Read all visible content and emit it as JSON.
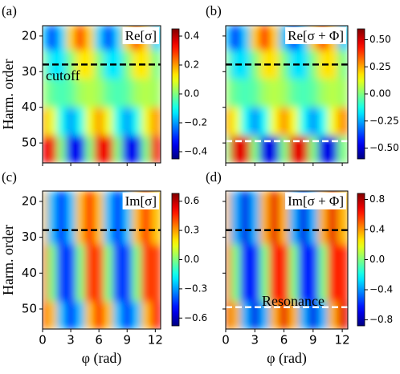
{
  "chart_data": [
    {
      "type": "heatmap",
      "panel": "(a)",
      "title": "Re[σ]",
      "colormap": "jet",
      "x": [
        0,
        1,
        2,
        3,
        4,
        5,
        6,
        7,
        8,
        9,
        10,
        11,
        12
      ],
      "y": [
        20,
        28,
        36,
        44,
        52
      ],
      "z": [
        [
          -0.15,
          -0.3,
          -0.15,
          0.15,
          0.3,
          0.15,
          -0.15,
          -0.3,
          -0.15,
          0.15,
          0.3,
          0.15,
          -0.15
        ],
        [
          0,
          -0.13,
          -0.13,
          0,
          0.13,
          0.13,
          0,
          -0.13,
          -0.13,
          0,
          0.13,
          0.13,
          0
        ],
        [
          0.03,
          -0.03,
          -0.05,
          -0.03,
          0.03,
          0.05,
          0.03,
          -0.03,
          -0.05,
          -0.03,
          0.03,
          0.05,
          0.03
        ],
        [
          0.2,
          0.1,
          -0.1,
          -0.2,
          -0.1,
          0.1,
          0.2,
          0.1,
          -0.1,
          -0.2,
          -0.1,
          0.1,
          0.2
        ],
        [
          0.35,
          0.35,
          0,
          -0.35,
          -0.35,
          0,
          0.35,
          0.35,
          0,
          -0.35,
          -0.35,
          0,
          0.35
        ]
      ],
      "xlim": [
        0,
        12.57
      ],
      "ylim": [
        55.6,
        17.1
      ],
      "xticks": [
        0,
        3,
        6,
        9,
        12
      ],
      "yticks": [
        20,
        30,
        40,
        50
      ],
      "show_xticklabels": false,
      "show_yticklabels": true,
      "ylabel": "Harm. order",
      "clim": [
        -0.45,
        0.45
      ],
      "cticks": [
        {
          "value": -0.4,
          "label": "−0.4"
        },
        {
          "value": -0.2,
          "label": "−0.2"
        },
        {
          "value": 0,
          "label": "0.0"
        },
        0.2,
        0.4
      ],
      "hlines": [
        {
          "y": 28,
          "color": "#000000"
        }
      ],
      "annotations": [
        {
          "text": "cutoff",
          "color": "#000000"
        }
      ]
    },
    {
      "type": "heatmap",
      "panel": "(b)",
      "title": "Re[σ + Φ]",
      "colormap": "jet",
      "x": [
        0,
        1,
        2,
        3,
        4,
        5,
        6,
        7,
        8,
        9,
        10,
        11,
        12
      ],
      "y": [
        20,
        28,
        36,
        44,
        52
      ],
      "z": [
        [
          -0.21,
          -0.42,
          -0.21,
          0.21,
          0.42,
          0.21,
          -0.21,
          -0.42,
          -0.21,
          0.21,
          0.42,
          0.21,
          -0.21
        ],
        [
          0,
          -0.18,
          -0.18,
          0,
          0.18,
          0.18,
          0,
          -0.18,
          -0.18,
          0,
          0.18,
          0.18,
          0
        ],
        [
          0.04,
          -0.04,
          -0.07,
          -0.04,
          0.04,
          0.07,
          0.04,
          -0.04,
          -0.07,
          -0.04,
          0.04,
          0.07,
          0.04
        ],
        [
          0.28,
          0.14,
          -0.14,
          -0.28,
          -0.14,
          0.14,
          0.28,
          0.14,
          -0.14,
          -0.28,
          -0.14,
          0.14,
          0.28
        ],
        [
          0,
          0.48,
          0.48,
          0,
          -0.48,
          -0.48,
          0,
          0.48,
          0.48,
          0,
          -0.48,
          -0.48,
          0
        ]
      ],
      "xlim": [
        0,
        12.57
      ],
      "ylim": [
        55.6,
        17.1
      ],
      "xticks": [
        0,
        3,
        6,
        9,
        12
      ],
      "yticks": [
        20,
        30,
        40,
        50
      ],
      "show_xticklabels": false,
      "show_yticklabels": false,
      "clim": [
        -0.6,
        0.6
      ],
      "cticks": [
        {
          "value": -0.5,
          "label": "−0.50"
        },
        {
          "value": -0.25,
          "label": "−0.25"
        },
        {
          "value": 0,
          "label": "0.00"
        },
        {
          "value": 0.25,
          "label": "0.25"
        },
        {
          "value": 0.5,
          "label": "0.50"
        }
      ],
      "hlines": [
        {
          "y": 28,
          "color": "#000000"
        },
        {
          "y": 49.5,
          "color": "#ffffff"
        }
      ],
      "annotations": []
    },
    {
      "type": "heatmap",
      "panel": "(c)",
      "title": "Im[σ]",
      "colormap": "jet",
      "x": [
        0,
        1,
        2,
        3,
        4,
        5,
        6,
        7,
        8,
        9,
        10,
        11,
        12
      ],
      "y": [
        20,
        28,
        36,
        44,
        52
      ],
      "z": [
        [
          0.25,
          -0.25,
          -0.5,
          -0.25,
          0.25,
          0.5,
          0.25,
          -0.25,
          -0.5,
          -0.25,
          0.25,
          0.5,
          0.25
        ],
        [
          0.25,
          -0.25,
          -0.5,
          -0.25,
          0.25,
          0.5,
          0.25,
          -0.25,
          -0.5,
          -0.25,
          0.25,
          0.5,
          0.25
        ],
        [
          0.43,
          0,
          -0.43,
          -0.43,
          0,
          0.43,
          0.43,
          0,
          -0.43,
          -0.43,
          0,
          0.43,
          0.43
        ],
        [
          0.43,
          0,
          -0.43,
          -0.43,
          0,
          0.43,
          0.43,
          0,
          -0.43,
          -0.43,
          0,
          0.43,
          0.43
        ],
        [
          0.5,
          0.25,
          -0.25,
          -0.5,
          -0.25,
          0.25,
          0.5,
          0.25,
          -0.25,
          -0.5,
          -0.25,
          0.25,
          0.5
        ]
      ],
      "xlim": [
        0,
        12.57
      ],
      "ylim": [
        55.6,
        17.1
      ],
      "xticks": [
        0,
        3,
        6,
        9,
        12
      ],
      "yticks": [
        20,
        30,
        40,
        50
      ],
      "show_xticklabels": true,
      "show_yticklabels": true,
      "ylabel": "Harm. order",
      "xlabel": "φ (rad)",
      "clim": [
        -0.68,
        0.68
      ],
      "cticks": [
        {
          "value": -0.6,
          "label": "−0.6"
        },
        {
          "value": -0.3,
          "label": "−0.3"
        },
        {
          "value": 0,
          "label": "0.0"
        },
        0.3,
        0.6
      ],
      "hlines": [
        {
          "y": 28,
          "color": "#000000"
        }
      ],
      "annotations": []
    },
    {
      "type": "heatmap",
      "panel": "(d)",
      "title": "Im[σ + Φ]",
      "colormap": "jet",
      "x": [
        0,
        1,
        2,
        3,
        4,
        5,
        6,
        7,
        8,
        9,
        10,
        11,
        12
      ],
      "y": [
        20,
        28,
        36,
        44,
        52
      ],
      "z": [
        [
          0.35,
          -0.35,
          -0.7,
          -0.35,
          0.35,
          0.7,
          0.35,
          -0.35,
          -0.7,
          -0.35,
          0.35,
          0.7,
          0.35
        ],
        [
          0.35,
          -0.35,
          -0.7,
          -0.35,
          0.35,
          0.7,
          0.35,
          -0.35,
          -0.7,
          -0.35,
          0.35,
          0.7,
          0.35
        ],
        [
          0.6,
          0,
          -0.6,
          -0.6,
          0,
          0.6,
          0.6,
          0,
          -0.6,
          -0.6,
          0,
          0.6,
          0.6
        ],
        [
          0.6,
          0,
          -0.6,
          -0.6,
          0,
          0.6,
          0.6,
          0,
          -0.6,
          -0.6,
          0,
          0.6,
          0.6
        ],
        [
          0.7,
          0.35,
          -0.35,
          -0.7,
          -0.35,
          0.35,
          0.7,
          0.35,
          -0.35,
          -0.7,
          -0.35,
          0.35,
          0.7
        ]
      ],
      "xlim": [
        0,
        12.57
      ],
      "ylim": [
        55.6,
        17.1
      ],
      "xticks": [
        0,
        3,
        6,
        9,
        12
      ],
      "yticks": [
        20,
        30,
        40,
        50
      ],
      "show_xticklabels": true,
      "show_yticklabels": false,
      "xlabel": "φ (rad)",
      "clim": [
        -0.88,
        0.88
      ],
      "cticks": [
        {
          "value": -0.8,
          "label": "−0.8"
        },
        {
          "value": -0.4,
          "label": "−0.4"
        },
        {
          "value": 0,
          "label": "0.0"
        },
        0.4,
        0.8
      ],
      "hlines": [
        {
          "y": 28,
          "color": "#000000"
        },
        {
          "y": 49.5,
          "color": "#ffffff"
        }
      ],
      "annotations": [
        {
          "text": "Resonance",
          "color": "#000000"
        }
      ]
    }
  ]
}
